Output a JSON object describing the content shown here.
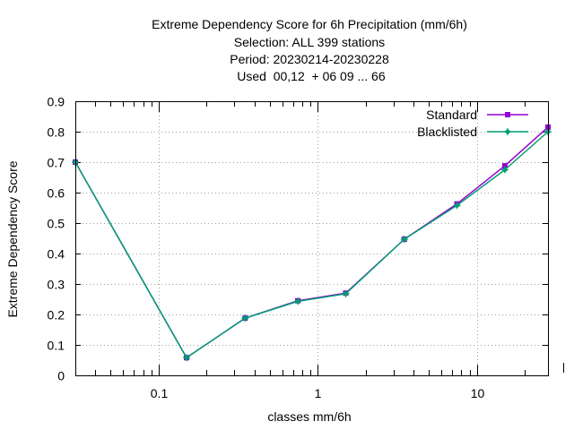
{
  "chart_data": {
    "type": "line",
    "title_lines": [
      "Extreme Dependency Score  for 6h Precipitation (mm/6h)",
      "Selection: ALL    399 stations",
      "Period: 20230214-20230228",
      " Used  00,12  + 06 09 ... 66"
    ],
    "xlabel": "classes mm/6h",
    "ylabel": "Extreme Dependency Score",
    "x_scale": "log",
    "xlim": [
      0.03,
      28
    ],
    "ylim": [
      0,
      0.9
    ],
    "x_tick_labels": [
      {
        "value": 0.1,
        "label": "0.1"
      },
      {
        "value": 1,
        "label": "1"
      },
      {
        "value": 10,
        "label": "10"
      }
    ],
    "y_ticks": [
      0,
      0.1,
      0.2,
      0.3,
      0.4,
      0.5,
      0.6,
      0.7,
      0.8,
      0.9
    ],
    "y_tick_labels": [
      "0",
      "0.1",
      "0.2",
      "0.3",
      "0.4",
      "0.5",
      "0.6",
      "0.7",
      "0.8",
      "0.9"
    ],
    "grid": true,
    "legend_position": "top-right",
    "series": [
      {
        "name": "Standard",
        "color": "#9400d3",
        "x": [
          0.03,
          0.15,
          0.35,
          0.75,
          1.5,
          3.5,
          7.5,
          15,
          28
        ],
        "y": [
          0.7,
          0.058,
          0.188,
          0.245,
          0.27,
          0.447,
          0.563,
          0.688,
          0.815
        ]
      },
      {
        "name": "Blacklisted",
        "color": "#009e73",
        "x": [
          0.03,
          0.15,
          0.35,
          0.75,
          1.5,
          3.5,
          7.5,
          15,
          28
        ],
        "y": [
          0.7,
          0.058,
          0.188,
          0.243,
          0.268,
          0.447,
          0.558,
          0.675,
          0.8
        ]
      }
    ]
  }
}
